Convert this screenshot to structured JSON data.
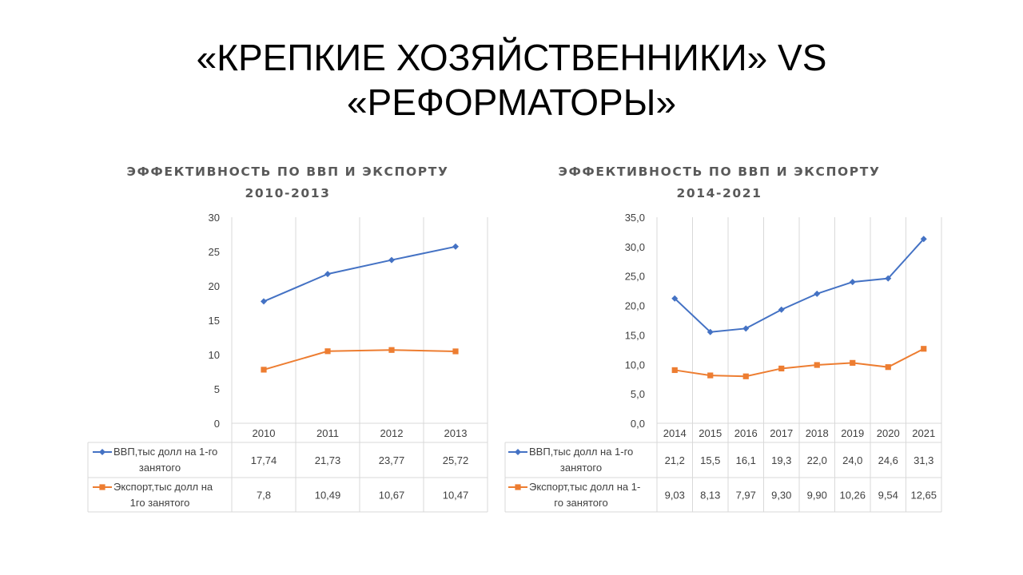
{
  "slide": {
    "title_line1": "«КРЕПКИЕ ХОЗЯЙСТВЕННИКИ» VS",
    "title_line2": "«РЕФОРМАТОРЫ»"
  },
  "chart_data": [
    {
      "type": "line",
      "title_line1": "ЭФФЕКТИВНОСТЬ ПО ВВП И ЭКСПОРТУ",
      "title_line2": "2010-2013",
      "categories": [
        "2010",
        "2011",
        "2012",
        "2013"
      ],
      "ylim": [
        0,
        30
      ],
      "yticks": [
        0,
        5,
        10,
        15,
        20,
        25,
        30
      ],
      "ytick_labels": [
        "0",
        "5",
        "10",
        "15",
        "20",
        "25",
        "30"
      ],
      "grid": "vertical",
      "legend": "data-table",
      "series": [
        {
          "name_line1": "ВВП,тыс долл на 1-го",
          "name_line2": "занятого",
          "values": [
            17.74,
            21.73,
            23.77,
            25.72
          ],
          "labels": [
            "17,74",
            "21,73",
            "23,77",
            "25,72"
          ],
          "color": "#4472C4",
          "marker": "diamond"
        },
        {
          "name_line1": "Экспорт,тыс долл на",
          "name_line2": "1го занятого",
          "values": [
            7.8,
            10.49,
            10.67,
            10.47
          ],
          "labels": [
            "7,8",
            "10,49",
            "10,67",
            "10,47"
          ],
          "color": "#ED7D31",
          "marker": "square"
        }
      ]
    },
    {
      "type": "line",
      "title_line1": "ЭФФЕКТИВНОСТЬ ПО ВВП И ЭКСПОРТУ",
      "title_line2": "2014-2021",
      "categories": [
        "2014",
        "2015",
        "2016",
        "2017",
        "2018",
        "2019",
        "2020",
        "2021"
      ],
      "ylim": [
        0,
        35
      ],
      "yticks": [
        0,
        5,
        10,
        15,
        20,
        25,
        30,
        35
      ],
      "ytick_labels": [
        "0,0",
        "5,0",
        "10,0",
        "15,0",
        "20,0",
        "25,0",
        "30,0",
        "35,0"
      ],
      "grid": "vertical",
      "legend": "data-table",
      "series": [
        {
          "name_line1": "ВВП,тыс долл на 1-го",
          "name_line2": "занятого",
          "values": [
            21.2,
            15.5,
            16.1,
            19.3,
            22.0,
            24.0,
            24.6,
            31.3
          ],
          "labels": [
            "21,2",
            "15,5",
            "16,1",
            "19,3",
            "22,0",
            "24,0",
            "24,6",
            "31,3"
          ],
          "color": "#4472C4",
          "marker": "diamond"
        },
        {
          "name_line1": "Экспорт,тыс долл на 1-",
          "name_line2": "го занятого",
          "values": [
            9.03,
            8.13,
            7.97,
            9.3,
            9.9,
            10.26,
            9.54,
            12.65
          ],
          "labels": [
            "9,03",
            "8,13",
            "7,97",
            "9,30",
            "9,90",
            "10,26",
            "9,54",
            "12,65"
          ],
          "color": "#ED7D31",
          "marker": "square"
        }
      ]
    }
  ]
}
